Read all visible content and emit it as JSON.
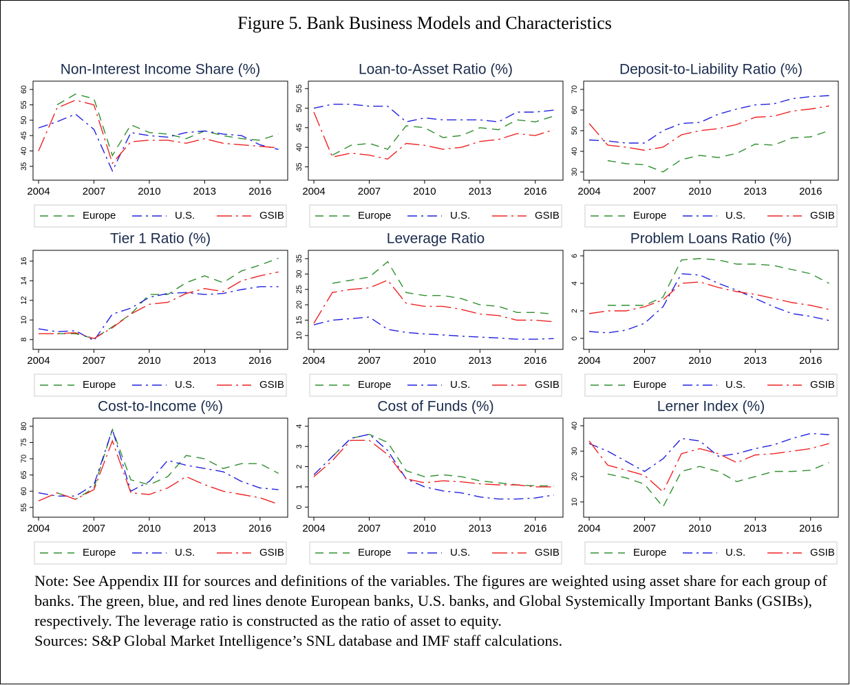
{
  "title": "Figure 5. Bank Business Models and Characteristics",
  "note": "Note: See Appendix III for sources and definitions of the variables. The figures are weighted using asset share for each group of banks. The green, blue, and red lines denote European banks, U.S. banks, and Global Systemically Important Banks (GSIBs), respectively. The leverage ratio is constructed as the ratio of asset to equity.",
  "sources": "Sources: S&P Global Market Intelligence’s SNL database and IMF staff calculations.",
  "chart_data": [
    {
      "type": "line",
      "title": "Non-Interest Income Share (%)",
      "x": [
        2004,
        2005,
        2006,
        2007,
        2008,
        2009,
        2010,
        2011,
        2012,
        2013,
        2014,
        2015,
        2016,
        2017
      ],
      "xlim": [
        2003.7,
        2017.5
      ],
      "xticks": [
        2004,
        2007,
        2010,
        2013,
        2016
      ],
      "ylim": [
        30.5,
        62.7
      ],
      "yticks": [
        35,
        40,
        45,
        50,
        55,
        60
      ],
      "series": [
        {
          "name": "Europe",
          "color": "#2f8f2f",
          "dash": "dash",
          "values": [
            null,
            55,
            58.5,
            57,
            38.5,
            48.5,
            46,
            45.5,
            44,
            46.5,
            45,
            44,
            43.5,
            45.5
          ]
        },
        {
          "name": "U.S.",
          "color": "#2020e0",
          "dash": "dashdot",
          "values": [
            47.5,
            49.5,
            52,
            47,
            33.5,
            46,
            45,
            44.5,
            46,
            46.5,
            45.5,
            45,
            42,
            40.5
          ]
        },
        {
          "name": "GSIB",
          "color": "#ee2222",
          "dash": "longdashdot",
          "values": [
            40,
            54,
            56.5,
            55,
            36,
            43,
            43.5,
            43.5,
            42.5,
            44,
            42.5,
            42,
            41.5,
            41
          ]
        }
      ]
    },
    {
      "type": "line",
      "title": "Loan-to-Asset Ratio (%)",
      "x": [
        2004,
        2005,
        2006,
        2007,
        2008,
        2009,
        2010,
        2011,
        2012,
        2013,
        2014,
        2015,
        2016,
        2017
      ],
      "xlim": [
        2003.7,
        2017.5
      ],
      "xticks": [
        2004,
        2007,
        2010,
        2013,
        2016
      ],
      "ylim": [
        31.6,
        56.9
      ],
      "yticks": [
        35,
        40,
        45,
        50,
        55
      ],
      "series": [
        {
          "name": "Europe",
          "color": "#2f8f2f",
          "dash": "dash",
          "values": [
            null,
            38,
            40.5,
            41,
            39.5,
            45.5,
            45,
            42.5,
            43,
            45,
            44.5,
            47,
            46.5,
            48
          ]
        },
        {
          "name": "U.S.",
          "color": "#2020e0",
          "dash": "dashdot",
          "values": [
            50,
            51,
            51,
            50.5,
            50.5,
            46.5,
            47.5,
            47,
            47,
            47,
            46.5,
            49,
            49,
            49.5
          ]
        },
        {
          "name": "GSIB",
          "color": "#ee2222",
          "dash": "longdashdot",
          "values": [
            49,
            37.5,
            38.5,
            38,
            37,
            41,
            40.5,
            39.5,
            40,
            41.5,
            42,
            43.5,
            43,
            44.5
          ]
        }
      ]
    },
    {
      "type": "line",
      "title": "Deposit-to-Liability Ratio (%)",
      "x": [
        2004,
        2005,
        2006,
        2007,
        2008,
        2009,
        2010,
        2011,
        2012,
        2013,
        2014,
        2015,
        2016,
        2017
      ],
      "xlim": [
        2003.7,
        2017.5
      ],
      "xticks": [
        2004,
        2007,
        2010,
        2013,
        2016
      ],
      "ylim": [
        26,
        74
      ],
      "yticks": [
        30,
        40,
        50,
        60,
        70
      ],
      "series": [
        {
          "name": "Europe",
          "color": "#2f8f2f",
          "dash": "dash",
          "values": [
            null,
            35.5,
            34,
            33.5,
            30,
            36,
            38,
            37,
            39,
            43.5,
            43,
            46.5,
            47,
            50
          ]
        },
        {
          "name": "U.S.",
          "color": "#2020e0",
          "dash": "dashdot",
          "values": [
            45.5,
            45,
            44,
            44,
            50,
            53.5,
            54,
            58,
            60.5,
            62.5,
            63,
            65.5,
            66.5,
            67
          ]
        },
        {
          "name": "GSIB",
          "color": "#ee2222",
          "dash": "longdashdot",
          "values": [
            53.5,
            43,
            42,
            40.5,
            42,
            48,
            50,
            51,
            53,
            56.5,
            57,
            59.5,
            60.5,
            62
          ]
        }
      ]
    },
    {
      "type": "line",
      "title": "Tier 1 Ratio (%)",
      "x": [
        2004,
        2005,
        2006,
        2007,
        2008,
        2009,
        2010,
        2011,
        2012,
        2013,
        2014,
        2015,
        2016,
        2017
      ],
      "xlim": [
        2003.7,
        2017.5
      ],
      "xticks": [
        2004,
        2007,
        2010,
        2013,
        2016
      ],
      "ylim": [
        7,
        17.1
      ],
      "yticks": [
        8,
        10,
        12,
        14,
        16
      ],
      "series": [
        {
          "name": "Europe",
          "color": "#2f8f2f",
          "dash": "dash",
          "values": [
            null,
            8.6,
            8.6,
            8.1,
            9.3,
            10.6,
            12.6,
            12.6,
            13.8,
            14.5,
            13.8,
            15,
            15.6,
            16.3
          ]
        },
        {
          "name": "U.S.",
          "color": "#2020e0",
          "dash": "dashdot",
          "values": [
            9.1,
            8.8,
            8.9,
            7.9,
            10.6,
            11.2,
            12.3,
            12.7,
            12.8,
            12.6,
            12.7,
            13.1,
            13.4,
            13.4
          ]
        },
        {
          "name": "GSIB",
          "color": "#ee2222",
          "dash": "longdashdot",
          "values": [
            8.6,
            8.6,
            8.7,
            8.1,
            9.2,
            10.6,
            11.6,
            11.8,
            12.7,
            13.2,
            12.9,
            14,
            14.5,
            14.9
          ]
        }
      ]
    },
    {
      "type": "line",
      "title": "Leverage Ratio",
      "x": [
        2004,
        2005,
        2006,
        2007,
        2008,
        2009,
        2010,
        2011,
        2012,
        2013,
        2014,
        2015,
        2016,
        2017
      ],
      "xlim": [
        2003.7,
        2017.5
      ],
      "xticks": [
        2004,
        2007,
        2010,
        2013,
        2016
      ],
      "ylim": [
        5.5,
        37.7
      ],
      "yticks": [
        10,
        15,
        20,
        25,
        30,
        35
      ],
      "series": [
        {
          "name": "Europe",
          "color": "#2f8f2f",
          "dash": "dash",
          "values": [
            null,
            27,
            28,
            29,
            34,
            24,
            23,
            23,
            22,
            20,
            19.5,
            17.5,
            17.5,
            17
          ]
        },
        {
          "name": "U.S.",
          "color": "#2020e0",
          "dash": "dashdot",
          "values": [
            13.5,
            15,
            15.5,
            16,
            12,
            11,
            10.5,
            10.2,
            9.8,
            9.5,
            9.2,
            8.8,
            8.8,
            9
          ]
        },
        {
          "name": "GSIB",
          "color": "#ee2222",
          "dash": "longdashdot",
          "values": [
            14,
            24,
            25,
            25.5,
            28,
            20.5,
            19.5,
            19.5,
            18.5,
            17,
            16.5,
            15,
            15,
            14.5
          ]
        }
      ]
    },
    {
      "type": "line",
      "title": "Problem Loans Ratio (%)",
      "x": [
        2004,
        2005,
        2006,
        2007,
        2008,
        2009,
        2010,
        2011,
        2012,
        2013,
        2014,
        2015,
        2016,
        2017
      ],
      "xlim": [
        2003.7,
        2017.5
      ],
      "xticks": [
        2004,
        2007,
        2010,
        2013,
        2016
      ],
      "ylim": [
        -0.8,
        6.4
      ],
      "yticks": [
        0,
        2,
        4,
        6
      ],
      "series": [
        {
          "name": "Europe",
          "color": "#2f8f2f",
          "dash": "dash",
          "values": [
            null,
            2.4,
            2.4,
            2.4,
            3,
            5.7,
            5.8,
            5.7,
            5.4,
            5.4,
            5.3,
            5,
            4.7,
            4
          ]
        },
        {
          "name": "U.S.",
          "color": "#2020e0",
          "dash": "dashdot",
          "values": [
            0.5,
            0.4,
            0.6,
            1.1,
            2.3,
            4.7,
            4.6,
            4,
            3.5,
            2.9,
            2.3,
            1.8,
            1.6,
            1.3
          ]
        },
        {
          "name": "GSIB",
          "color": "#ee2222",
          "dash": "longdashdot",
          "values": [
            1.8,
            2,
            2,
            2.3,
            2.8,
            4,
            4.1,
            3.7,
            3.4,
            3.2,
            2.9,
            2.6,
            2.4,
            2.1
          ]
        }
      ]
    },
    {
      "type": "line",
      "title": "Cost-to-Income (%)",
      "x": [
        2004,
        2005,
        2006,
        2007,
        2008,
        2009,
        2010,
        2011,
        2012,
        2013,
        2014,
        2015,
        2016,
        2017
      ],
      "xlim": [
        2003.7,
        2017.5
      ],
      "xticks": [
        2004,
        2007,
        2010,
        2013,
        2016
      ],
      "ylim": [
        52,
        82.5
      ],
      "yticks": [
        55,
        60,
        65,
        70,
        75,
        80
      ],
      "series": [
        {
          "name": "Europe",
          "color": "#2f8f2f",
          "dash": "dash",
          "values": [
            null,
            59.5,
            57.5,
            61,
            79,
            63.5,
            62,
            64.5,
            71,
            70,
            67,
            68.5,
            68.5,
            65.5
          ]
        },
        {
          "name": "U.S.",
          "color": "#2020e0",
          "dash": "dashdot",
          "values": [
            59.5,
            58.5,
            58.5,
            62,
            79,
            60,
            63,
            69.5,
            68,
            67,
            66,
            63,
            61,
            60.5
          ]
        },
        {
          "name": "GSIB",
          "color": "#ee2222",
          "dash": "longdashdot",
          "values": [
            57,
            59.5,
            57.5,
            60.5,
            75.5,
            59.5,
            59,
            61,
            64.5,
            62,
            60,
            59,
            58,
            56
          ]
        }
      ]
    },
    {
      "type": "line",
      "title": "Cost of Funds (%)",
      "x": [
        2004,
        2005,
        2006,
        2007,
        2008,
        2009,
        2010,
        2011,
        2012,
        2013,
        2014,
        2015,
        2016,
        2017
      ],
      "xlim": [
        2003.7,
        2017.5
      ],
      "xticks": [
        2004,
        2007,
        2010,
        2013,
        2016
      ],
      "ylim": [
        -0.5,
        4.4
      ],
      "yticks": [
        0,
        1,
        2,
        3,
        4
      ],
      "series": [
        {
          "name": "Europe",
          "color": "#2f8f2f",
          "dash": "dash",
          "values": [
            null,
            2.5,
            3.4,
            3.6,
            3.2,
            1.8,
            1.5,
            1.6,
            1.5,
            1.3,
            1.2,
            1.1,
            1.05,
            1.05
          ]
        },
        {
          "name": "U.S.",
          "color": "#2020e0",
          "dash": "dashdot",
          "values": [
            1.6,
            2.5,
            3.4,
            3.6,
            2.8,
            1.4,
            1,
            0.8,
            0.7,
            0.5,
            0.4,
            0.4,
            0.45,
            0.6
          ]
        },
        {
          "name": "GSIB",
          "color": "#ee2222",
          "dash": "longdashdot",
          "values": [
            1.5,
            2.3,
            3.3,
            3.3,
            2.6,
            1.4,
            1.2,
            1.3,
            1.25,
            1.15,
            1.1,
            1.1,
            1,
            1
          ]
        }
      ]
    },
    {
      "type": "line",
      "title": "Lerner Index (%)",
      "x": [
        2004,
        2005,
        2006,
        2007,
        2008,
        2009,
        2010,
        2011,
        2012,
        2013,
        2014,
        2015,
        2016,
        2017
      ],
      "xlim": [
        2003.7,
        2017.5
      ],
      "xticks": [
        2004,
        2007,
        2010,
        2013,
        2016
      ],
      "ylim": [
        4,
        43
      ],
      "yticks": [
        10,
        20,
        30,
        40
      ],
      "series": [
        {
          "name": "Europe",
          "color": "#2f8f2f",
          "dash": "dash",
          "values": [
            null,
            21,
            19.5,
            17,
            8,
            22,
            24,
            22,
            18,
            20,
            22,
            22,
            22.5,
            25.5
          ]
        },
        {
          "name": "U.S.",
          "color": "#2020e0",
          "dash": "dashdot",
          "values": [
            33,
            30,
            26,
            22,
            27,
            35,
            34,
            28,
            29,
            31,
            32.5,
            35,
            37,
            36.5
          ]
        },
        {
          "name": "GSIB",
          "color": "#ee2222",
          "dash": "longdashdot",
          "values": [
            34,
            24.5,
            22.5,
            20.5,
            14,
            29,
            31,
            29,
            25.5,
            28.5,
            29,
            30,
            31,
            33
          ]
        }
      ]
    }
  ]
}
